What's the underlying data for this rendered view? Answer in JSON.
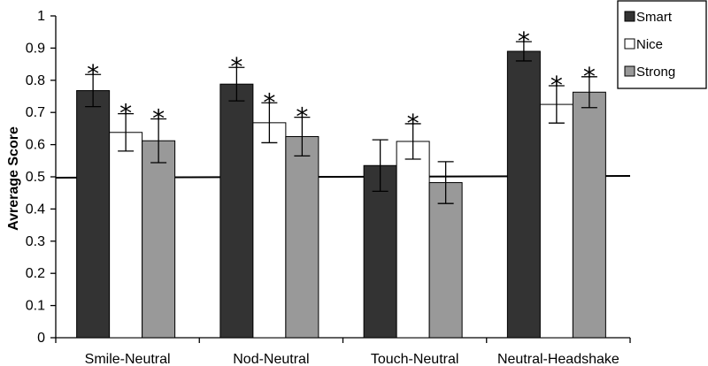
{
  "chart_data": {
    "type": "bar",
    "title": "",
    "xlabel": "",
    "ylabel": "Avrerage Score",
    "ylim": [
      0,
      1
    ],
    "yticks": [
      "0",
      "0.1",
      "0.2",
      "0.3",
      "0.4",
      "0.5",
      "0.6",
      "0.7",
      "0.8",
      "0.9",
      "1"
    ],
    "reference_line": 0.5,
    "categories": [
      "Smile-Neutral",
      "Nod-Neutral",
      "Touch-Neutral",
      "Neutral-Headshake"
    ],
    "series": [
      {
        "name": "Smart",
        "color": "#333333",
        "values": [
          0.768,
          0.788,
          0.535,
          0.89
        ],
        "errors": [
          0.05,
          0.052,
          0.08,
          0.03
        ],
        "significant": [
          true,
          true,
          false,
          true
        ]
      },
      {
        "name": "Nice",
        "color": "#ffffff",
        "values": [
          0.638,
          0.668,
          0.61,
          0.725
        ],
        "errors": [
          0.058,
          0.062,
          0.055,
          0.058
        ],
        "significant": [
          true,
          true,
          true,
          true
        ]
      },
      {
        "name": "Strong",
        "color": "#999999",
        "values": [
          0.612,
          0.625,
          0.482,
          0.763
        ],
        "errors": [
          0.068,
          0.06,
          0.065,
          0.048
        ],
        "significant": [
          true,
          true,
          false,
          true
        ]
      }
    ],
    "legend": {
      "position": "top-right",
      "entries": [
        "Smart",
        "Nice",
        "Strong"
      ]
    },
    "significance_marker": "*"
  }
}
